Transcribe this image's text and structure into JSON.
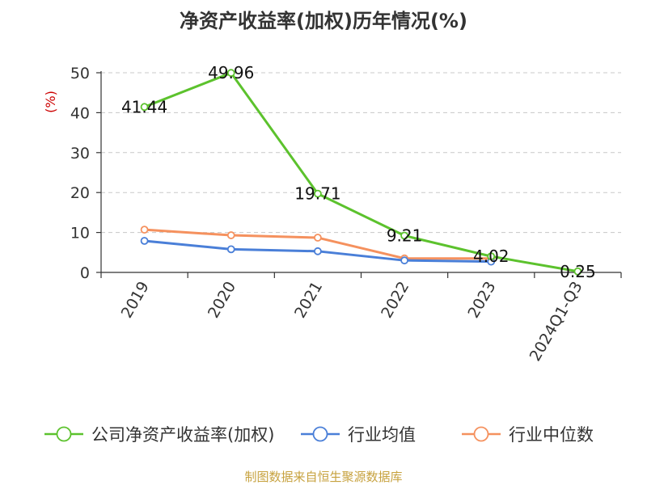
{
  "chart_data": {
    "type": "line",
    "title": "净资产收益率(加权)历年情况(%)",
    "ylabel": "(%)",
    "ylim": [
      0,
      50
    ],
    "yticks": [
      0,
      10,
      20,
      30,
      40,
      50
    ],
    "grid": "horizontal-dashed",
    "legend_position": "bottom",
    "categories": [
      "2019",
      "2020",
      "2021",
      "2022",
      "2023",
      "2024Q1-Q3"
    ],
    "series": [
      {
        "name": "公司净资产收益率(加权)",
        "color": "#5cc22d",
        "values": [
          41.44,
          49.96,
          19.71,
          9.21,
          4.02,
          0.25
        ],
        "labels": [
          "41.44",
          "49.96",
          "19.71",
          "9.21",
          "4.02",
          "0.25"
        ]
      },
      {
        "name": "行业均值",
        "color": "#4a7fd8",
        "values": [
          7.9,
          5.8,
          5.3,
          3.0,
          2.7,
          null
        ]
      },
      {
        "name": "行业中位数",
        "color": "#f5915e",
        "values": [
          10.7,
          9.3,
          8.7,
          3.5,
          3.5,
          null
        ]
      }
    ]
  },
  "source": "制图数据来自恒生聚源数据库"
}
